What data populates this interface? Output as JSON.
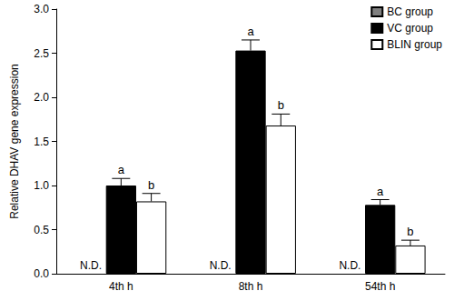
{
  "chart_data": {
    "type": "bar",
    "y_label": "Relative DHAV gene expression",
    "categories": [
      "4th h",
      "8th h",
      "54th h"
    ],
    "series": [
      {
        "name": "BC group",
        "color": "#808080",
        "values": [
          null,
          null,
          null
        ],
        "annotations": [
          "N.D.",
          "N.D.",
          "N.D."
        ]
      },
      {
        "name": "VC group",
        "color": "#000000",
        "values": [
          1.0,
          2.53,
          0.78
        ],
        "errors": [
          0.08,
          0.12,
          0.06
        ],
        "annotations": [
          "a",
          "a",
          "a"
        ]
      },
      {
        "name": "BLIN group",
        "color": "#ffffff",
        "values": [
          0.82,
          1.68,
          0.32
        ],
        "errors": [
          0.09,
          0.13,
          0.06
        ],
        "annotations": [
          "b",
          "b",
          "b"
        ]
      }
    ],
    "ylim": [
      0,
      3
    ],
    "yticks": [
      {
        "value": 0,
        "label": "0.0"
      },
      0.5,
      {
        "value": 1,
        "label": "1.0"
      },
      1.5,
      {
        "value": 2,
        "label": "2.0"
      },
      2.5,
      {
        "value": 3,
        "label": "3.0"
      }
    ],
    "grid": false,
    "legend": "upper right"
  }
}
